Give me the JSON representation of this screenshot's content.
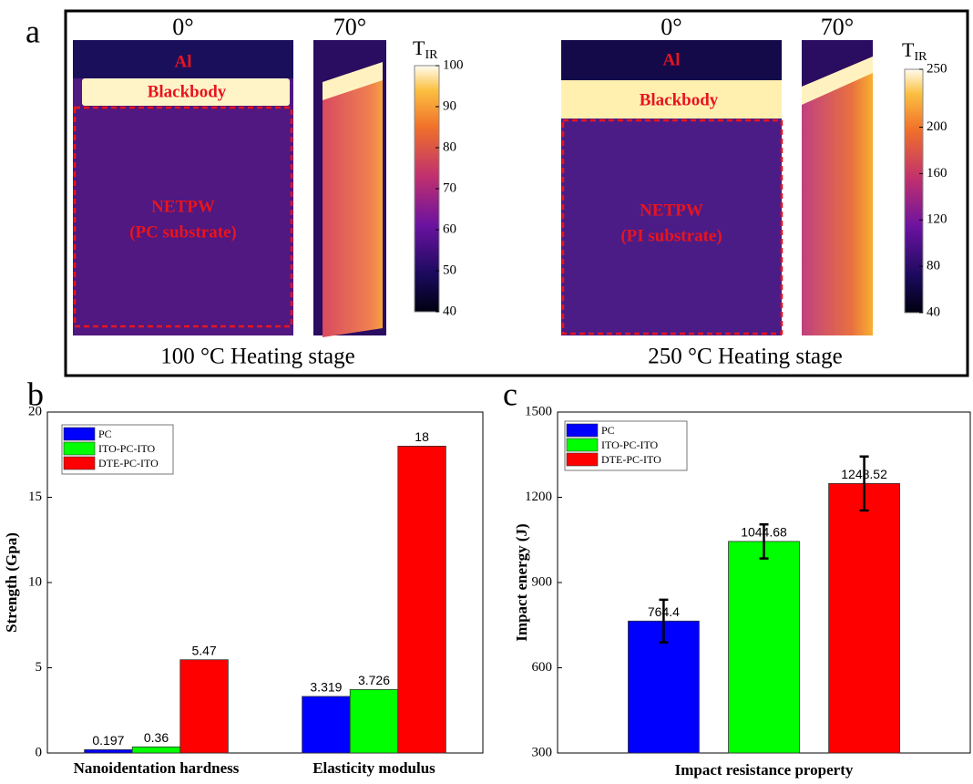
{
  "panel_labels": [
    "a",
    "b",
    "c"
  ],
  "panel_a": {
    "left": {
      "angles": [
        "0°",
        "70°"
      ],
      "labels": [
        "Al",
        "Blackbody",
        "NETPW",
        "(PC substrate)"
      ],
      "colorbar": {
        "title": "T",
        "title_sub": "IR",
        "lim": [
          40,
          100
        ],
        "ticks": [
          40,
          50,
          60,
          70,
          80,
          90,
          100
        ]
      },
      "caption": "100 °C Heating stage"
    },
    "right": {
      "angles": [
        "0°",
        "70°"
      ],
      "labels": [
        "Al",
        "Blackbody",
        "NETPW",
        "(PI substrate)"
      ],
      "colorbar": {
        "title": "T",
        "title_sub": "IR",
        "lim": [
          40,
          250
        ],
        "ticks": [
          40,
          80,
          120,
          160,
          200,
          250
        ]
      },
      "caption": "250 °C Heating stage"
    }
  },
  "chart_data": [
    {
      "type": "bar",
      "ylabel": "Strength (Gpa)",
      "categories": [
        "Nanoidentation hardness",
        "Elasticity modulus"
      ],
      "series": [
        {
          "name": "PC",
          "color": "#0000ff",
          "values": [
            0.197,
            3.319
          ]
        },
        {
          "name": "ITO-PC-ITO",
          "color": "#00ff00",
          "values": [
            0.36,
            3.726
          ]
        },
        {
          "name": "DTE-PC-ITO",
          "color": "#ff0000",
          "values": [
            5.47,
            18
          ]
        }
      ],
      "ylim": [
        0,
        20
      ],
      "yticks": [
        0,
        5,
        10,
        15,
        20
      ],
      "legend": "upper left"
    },
    {
      "type": "bar",
      "ylabel": "Impact energy (J)",
      "xlabel": "Impact resistance property",
      "categories": [
        null
      ],
      "series": [
        {
          "name": "PC",
          "color": "#0000ff",
          "values": [
            764.4
          ],
          "errors": [
            75
          ]
        },
        {
          "name": "ITO-PC-ITO",
          "color": "#00ff00",
          "values": [
            1044.68
          ],
          "errors": [
            60
          ]
        },
        {
          "name": "DTE-PC-ITO",
          "color": "#ff0000",
          "values": [
            1248.52
          ],
          "errors": [
            95
          ]
        }
      ],
      "ylim": [
        300,
        1500
      ],
      "yticks": [
        300,
        600,
        900,
        1200,
        1500
      ],
      "legend": "upper left"
    }
  ]
}
